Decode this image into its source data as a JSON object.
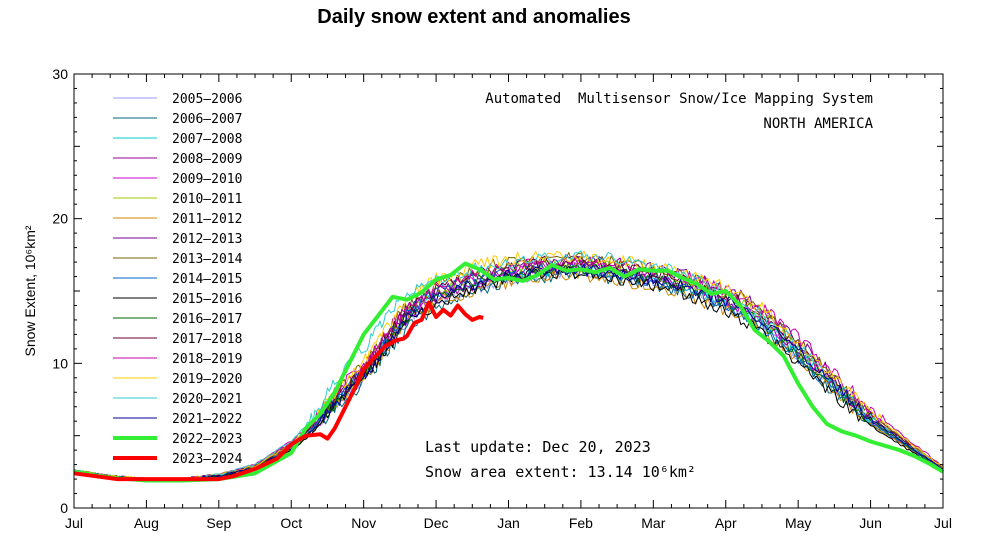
{
  "chart_data": {
    "type": "line",
    "title": "Daily snow extent and anomalies",
    "ylabel": "Snow Extent, 10⁶km²",
    "xlabel": "",
    "ylim": [
      0,
      30
    ],
    "yticks": [
      0,
      10,
      20,
      30
    ],
    "xlim": [
      0,
      12
    ],
    "xticks": [
      "Jul",
      "Aug",
      "Sep",
      "Oct",
      "Nov",
      "Dec",
      "Jan",
      "Feb",
      "Mar",
      "Apr",
      "May",
      "Jun",
      "Jul"
    ],
    "legend_position": "top-left",
    "annotations": {
      "system": "Automated  Multisensor Snow/Ice Mapping System",
      "region": "NORTH AMERICA",
      "last_update": "Last update: Dec 20, 2023",
      "area_extent": "Snow area extent: 13.14 10⁶km²"
    },
    "series": [
      {
        "name": "2005–2006",
        "color": "#9999ff",
        "thick": false,
        "x": [
          0,
          0.5,
          1,
          1.5,
          2,
          2.5,
          3,
          3.3,
          3.6,
          4,
          4.3,
          4.6,
          5,
          5.5,
          6,
          6.5,
          7,
          7.5,
          8,
          8.5,
          9,
          9.5,
          10,
          10.5,
          11,
          11.5,
          12
        ],
        "y": [
          2.6,
          2.2,
          2.0,
          2.0,
          2.2,
          2.8,
          4.2,
          5.5,
          7.2,
          9.0,
          11.0,
          13.0,
          14.3,
          15.0,
          15.8,
          16.2,
          16.3,
          16.0,
          15.7,
          15.1,
          14.2,
          12.7,
          10.6,
          8.2,
          6.0,
          4.3,
          2.7
        ]
      },
      {
        "name": "2006–2007",
        "color": "#006677",
        "thick": false,
        "x": [
          0,
          0.5,
          1,
          1.5,
          2,
          2.5,
          3,
          3.3,
          3.6,
          4,
          4.3,
          4.6,
          5,
          5.5,
          6,
          6.5,
          7,
          7.5,
          8,
          8.5,
          9,
          9.5,
          10,
          10.5,
          11,
          11.5,
          12
        ],
        "y": [
          2.5,
          2.2,
          2.0,
          2.0,
          2.2,
          2.7,
          4.0,
          5.2,
          7.0,
          8.6,
          10.6,
          12.4,
          13.8,
          14.9,
          15.7,
          16.0,
          16.2,
          15.8,
          15.5,
          14.9,
          14.0,
          12.5,
          10.4,
          8.0,
          5.8,
          4.2,
          2.6
        ]
      },
      {
        "name": "2007–2008",
        "color": "#00cccc",
        "thick": false,
        "x": [
          0,
          0.5,
          1,
          1.5,
          2,
          2.5,
          3,
          3.3,
          3.6,
          4,
          4.3,
          4.6,
          5,
          5.5,
          6,
          6.5,
          7,
          7.5,
          8,
          8.5,
          9,
          9.5,
          10,
          10.5,
          11,
          11.5,
          12
        ],
        "y": [
          2.6,
          2.2,
          2.0,
          2.0,
          2.3,
          2.9,
          4.3,
          5.6,
          7.4,
          9.4,
          11.6,
          13.6,
          14.7,
          15.3,
          16.0,
          16.4,
          16.6,
          16.3,
          15.9,
          15.2,
          14.3,
          12.9,
          10.7,
          8.3,
          6.1,
          4.4,
          2.7
        ]
      },
      {
        "name": "2008–2009",
        "color": "#990099",
        "thick": false,
        "x": [
          0,
          0.5,
          1,
          1.5,
          2,
          2.5,
          3,
          3.3,
          3.6,
          4,
          4.3,
          4.6,
          5,
          5.5,
          6,
          6.5,
          7,
          7.5,
          8,
          8.5,
          9,
          9.5,
          10,
          10.5,
          11,
          11.5,
          12
        ],
        "y": [
          2.4,
          2.1,
          1.9,
          1.9,
          2.2,
          2.8,
          4.1,
          5.4,
          7.3,
          9.2,
          11.3,
          13.3,
          14.5,
          15.4,
          16.1,
          16.5,
          16.7,
          16.3,
          16.0,
          15.3,
          14.5,
          13.1,
          10.9,
          8.5,
          6.2,
          4.4,
          2.7
        ]
      },
      {
        "name": "2009–2010",
        "color": "#cc00cc",
        "thick": false,
        "x": [
          0,
          0.5,
          1,
          1.5,
          2,
          2.5,
          3,
          3.3,
          3.6,
          4,
          4.3,
          4.6,
          5,
          5.5,
          6,
          6.5,
          7,
          7.5,
          8,
          8.5,
          9,
          9.5,
          10,
          10.5,
          11,
          11.5,
          12
        ],
        "y": [
          2.5,
          2.2,
          2.0,
          2.0,
          2.3,
          3.0,
          4.5,
          5.8,
          7.8,
          9.6,
          11.5,
          13.2,
          14.6,
          15.6,
          16.2,
          16.6,
          16.8,
          16.4,
          16.0,
          15.4,
          14.4,
          13.0,
          10.8,
          8.4,
          6.0,
          4.3,
          2.6
        ]
      },
      {
        "name": "2010–2011",
        "color": "#99cc00",
        "thick": false,
        "x": [
          0,
          0.5,
          1,
          1.5,
          2,
          2.5,
          3,
          3.3,
          3.6,
          4,
          4.3,
          4.6,
          5,
          5.5,
          6,
          6.5,
          7,
          7.5,
          8,
          8.5,
          9,
          9.5,
          10,
          10.5,
          11,
          11.5,
          12
        ],
        "y": [
          2.6,
          2.2,
          2.0,
          2.0,
          2.2,
          2.8,
          4.2,
          5.5,
          7.3,
          9.3,
          11.4,
          13.5,
          15.0,
          16.0,
          16.6,
          16.9,
          17.0,
          16.7,
          16.2,
          15.6,
          14.8,
          13.3,
          11.1,
          8.6,
          6.3,
          4.5,
          2.8
        ]
      },
      {
        "name": "2011–2012",
        "color": "#cc8800",
        "thick": false,
        "x": [
          0,
          0.5,
          1,
          1.5,
          2,
          2.5,
          3,
          3.3,
          3.6,
          4,
          4.3,
          4.6,
          5,
          5.5,
          6,
          6.5,
          7,
          7.5,
          8,
          8.5,
          9,
          9.5,
          10,
          10.5,
          11,
          11.5,
          12
        ],
        "y": [
          2.5,
          2.1,
          1.9,
          1.9,
          2.2,
          2.7,
          4.0,
          5.2,
          7.0,
          9.0,
          11.0,
          12.9,
          14.2,
          15.0,
          15.6,
          16.0,
          16.1,
          15.8,
          15.3,
          14.6,
          13.7,
          12.2,
          10.2,
          7.9,
          5.8,
          4.2,
          2.6
        ]
      },
      {
        "name": "2012–2013",
        "color": "#770099",
        "thick": false,
        "x": [
          0,
          0.5,
          1,
          1.5,
          2,
          2.5,
          3,
          3.3,
          3.6,
          4,
          4.3,
          4.6,
          5,
          5.5,
          6,
          6.5,
          7,
          7.5,
          8,
          8.5,
          9,
          9.5,
          10,
          10.5,
          11,
          11.5,
          12
        ],
        "y": [
          2.5,
          2.2,
          2.0,
          2.0,
          2.3,
          2.9,
          4.3,
          5.6,
          7.5,
          9.5,
          11.6,
          13.6,
          15.0,
          16.0,
          16.6,
          17.0,
          17.2,
          16.9,
          16.5,
          16.0,
          15.2,
          13.8,
          11.6,
          9.0,
          6.5,
          4.6,
          2.8
        ]
      },
      {
        "name": "2013–2014",
        "color": "#776600",
        "thick": false,
        "x": [
          0,
          0.5,
          1,
          1.5,
          2,
          2.5,
          3,
          3.3,
          3.6,
          4,
          4.3,
          4.6,
          5,
          5.5,
          6,
          6.5,
          7,
          7.5,
          8,
          8.5,
          9,
          9.5,
          10,
          10.5,
          11,
          11.5,
          12
        ],
        "y": [
          2.6,
          2.2,
          2.0,
          2.0,
          2.3,
          2.9,
          4.4,
          5.8,
          7.8,
          9.9,
          12.0,
          14.0,
          15.4,
          16.4,
          17.0,
          17.3,
          17.3,
          17.0,
          16.6,
          16.0,
          15.1,
          13.7,
          11.5,
          8.9,
          6.4,
          4.6,
          2.8
        ]
      },
      {
        "name": "2014–2015",
        "color": "#0066cc",
        "thick": false,
        "x": [
          0,
          0.5,
          1,
          1.5,
          2,
          2.5,
          3,
          3.3,
          3.6,
          4,
          4.3,
          4.6,
          5,
          5.5,
          6,
          6.5,
          7,
          7.5,
          8,
          8.5,
          9,
          9.5,
          10,
          10.5,
          11,
          11.5,
          12
        ],
        "y": [
          2.5,
          2.2,
          2.0,
          2.0,
          2.2,
          2.8,
          4.2,
          5.5,
          7.4,
          9.4,
          11.5,
          13.5,
          14.9,
          15.8,
          16.3,
          16.5,
          16.6,
          16.2,
          15.7,
          15.0,
          14.0,
          12.5,
          10.4,
          8.1,
          5.9,
          4.3,
          2.6
        ]
      },
      {
        "name": "2015–2016",
        "color": "#000000",
        "thick": false,
        "x": [
          0,
          0.5,
          1,
          1.5,
          2,
          2.5,
          3,
          3.3,
          3.6,
          4,
          4.3,
          4.6,
          5,
          5.5,
          6,
          6.5,
          7,
          7.5,
          8,
          8.5,
          9,
          9.5,
          10,
          10.5,
          11,
          11.5,
          12
        ],
        "y": [
          2.5,
          2.2,
          2.0,
          2.0,
          2.2,
          2.7,
          4.0,
          5.2,
          7.0,
          9.0,
          10.9,
          12.8,
          14.1,
          15.2,
          15.9,
          16.2,
          16.3,
          15.9,
          15.4,
          14.7,
          13.6,
          12.1,
          10.1,
          7.8,
          5.7,
          4.1,
          2.5
        ]
      },
      {
        "name": "2016–2017",
        "color": "#006600",
        "thick": false,
        "x": [
          0,
          0.5,
          1,
          1.5,
          2,
          2.5,
          3,
          3.3,
          3.6,
          4,
          4.3,
          4.6,
          5,
          5.5,
          6,
          6.5,
          7,
          7.5,
          8,
          8.5,
          9,
          9.5,
          10,
          10.5,
          11,
          11.5,
          12
        ],
        "y": [
          2.5,
          2.2,
          2.0,
          2.0,
          2.2,
          2.8,
          4.1,
          5.4,
          7.2,
          9.2,
          11.2,
          13.2,
          14.6,
          15.6,
          16.2,
          16.5,
          16.6,
          16.3,
          15.9,
          15.3,
          14.3,
          12.8,
          10.7,
          8.3,
          6.0,
          4.3,
          2.6
        ]
      },
      {
        "name": "2017–2018",
        "color": "#660033",
        "thick": false,
        "x": [
          0,
          0.5,
          1,
          1.5,
          2,
          2.5,
          3,
          3.3,
          3.6,
          4,
          4.3,
          4.6,
          5,
          5.5,
          6,
          6.5,
          7,
          7.5,
          8,
          8.5,
          9,
          9.5,
          10,
          10.5,
          11,
          11.5,
          12
        ],
        "y": [
          2.6,
          2.2,
          2.0,
          2.0,
          2.3,
          2.9,
          4.3,
          5.7,
          7.6,
          9.6,
          11.7,
          13.7,
          15.1,
          16.1,
          16.7,
          17.0,
          17.0,
          16.7,
          16.3,
          15.7,
          14.8,
          13.4,
          11.2,
          8.7,
          6.3,
          4.5,
          2.7
        ]
      },
      {
        "name": "2018–2019",
        "color": "#cc00aa",
        "thick": false,
        "x": [
          0,
          0.5,
          1,
          1.5,
          2,
          2.5,
          3,
          3.3,
          3.6,
          4,
          4.3,
          4.6,
          5,
          5.5,
          6,
          6.5,
          7,
          7.5,
          8,
          8.5,
          9,
          9.5,
          10,
          10.5,
          11,
          11.5,
          12
        ],
        "y": [
          2.5,
          2.2,
          2.0,
          2.0,
          2.3,
          3.0,
          4.6,
          6.0,
          8.0,
          10.0,
          12.0,
          13.9,
          15.2,
          16.1,
          16.6,
          16.9,
          17.0,
          16.7,
          16.4,
          15.9,
          15.1,
          13.8,
          11.8,
          9.3,
          6.8,
          4.8,
          2.9
        ]
      },
      {
        "name": "2019–2020",
        "color": "#ffcc00",
        "thick": false,
        "x": [
          0,
          0.5,
          1,
          1.5,
          2,
          2.5,
          3,
          3.3,
          3.6,
          4,
          4.3,
          4.6,
          5,
          5.5,
          6,
          6.5,
          7,
          7.5,
          8,
          8.5,
          9,
          9.5,
          10,
          10.5,
          11,
          11.5,
          12
        ],
        "y": [
          2.6,
          2.2,
          2.0,
          2.0,
          2.3,
          2.9,
          4.4,
          5.9,
          8.0,
          10.2,
          12.4,
          14.4,
          15.8,
          16.7,
          17.2,
          17.4,
          17.4,
          17.1,
          16.7,
          16.1,
          15.2,
          13.8,
          11.6,
          9.0,
          6.6,
          4.7,
          2.8
        ]
      },
      {
        "name": "2020–2021",
        "color": "#33cccc",
        "thick": false,
        "x": [
          0,
          0.5,
          1,
          1.5,
          2,
          2.5,
          3,
          3.3,
          3.6,
          4,
          4.3,
          4.6,
          5,
          5.5,
          6,
          6.5,
          7,
          7.5,
          8,
          8.5,
          9,
          9.5,
          10,
          10.5,
          11,
          11.5,
          12
        ],
        "y": [
          2.6,
          2.2,
          2.0,
          2.0,
          2.3,
          3.0,
          4.6,
          6.3,
          8.8,
          11.0,
          13.0,
          14.8,
          15.9,
          16.5,
          16.9,
          17.2,
          17.5,
          17.3,
          16.8,
          16.0,
          14.9,
          13.3,
          11.1,
          8.6,
          6.2,
          4.4,
          2.7
        ]
      },
      {
        "name": "2021–2022",
        "color": "#000099",
        "thick": false,
        "x": [
          0,
          0.5,
          1,
          1.5,
          2,
          2.5,
          3,
          3.3,
          3.6,
          4,
          4.3,
          4.6,
          5,
          5.5,
          6,
          6.5,
          7,
          7.5,
          8,
          8.5,
          9,
          9.5,
          10,
          10.5,
          11,
          11.5,
          12
        ],
        "y": [
          2.5,
          2.2,
          2.0,
          2.0,
          2.2,
          2.8,
          4.1,
          5.4,
          7.2,
          9.1,
          11.1,
          13.1,
          14.5,
          15.5,
          16.1,
          16.4,
          16.5,
          16.2,
          15.8,
          15.2,
          14.3,
          12.9,
          10.9,
          8.5,
          6.2,
          4.4,
          2.7
        ]
      },
      {
        "name": "2022–2023",
        "color": "#33ee33",
        "thick": true,
        "x": [
          0,
          0.5,
          1,
          1.5,
          2,
          2.5,
          3,
          3.2,
          3.4,
          3.6,
          3.8,
          4,
          4.2,
          4.4,
          4.6,
          4.8,
          5,
          5.2,
          5.4,
          5.6,
          5.8,
          6,
          6.2,
          6.4,
          6.6,
          6.8,
          7,
          7.2,
          7.4,
          7.6,
          7.8,
          8,
          8.2,
          8.4,
          8.6,
          8.8,
          9,
          9.2,
          9.4,
          9.6,
          9.8,
          10,
          10.2,
          10.4,
          10.6,
          10.8,
          11,
          11.2,
          11.4,
          11.6,
          11.8,
          12
        ],
        "y": [
          2.5,
          2.1,
          1.9,
          1.9,
          2.0,
          2.4,
          3.8,
          5.5,
          6.5,
          8.0,
          10.0,
          12.0,
          13.3,
          14.6,
          14.4,
          14.9,
          15.8,
          16.1,
          16.9,
          16.5,
          15.8,
          15.9,
          15.7,
          16.1,
          16.8,
          16.4,
          16.5,
          16.3,
          16.6,
          16.0,
          16.5,
          16.4,
          16.4,
          15.9,
          15.5,
          14.8,
          15.0,
          14.0,
          12.3,
          11.5,
          10.5,
          8.6,
          7.0,
          5.8,
          5.3,
          5.0,
          4.6,
          4.3,
          4.0,
          3.6,
          3.1,
          2.5
        ]
      },
      {
        "name": "2023–2024",
        "color": "#ff0000",
        "thick": true,
        "x": [
          0,
          0.3,
          0.6,
          1,
          1.3,
          1.6,
          2,
          2.2,
          2.5,
          2.8,
          3.0,
          3.2,
          3.4,
          3.5,
          3.6,
          3.75,
          3.9,
          4.0,
          4.15,
          4.3,
          4.45,
          4.55,
          4.6,
          4.7,
          4.8,
          4.9,
          5.0,
          5.1,
          5.2,
          5.3,
          5.4,
          5.5,
          5.6,
          5.65
        ],
        "y": [
          2.4,
          2.2,
          2.0,
          2.0,
          2.0,
          2.0,
          2.0,
          2.2,
          2.7,
          3.4,
          4.4,
          5.0,
          5.1,
          4.8,
          5.5,
          7.0,
          8.5,
          9.6,
          10.4,
          11.2,
          11.6,
          11.7,
          11.9,
          12.8,
          13.0,
          14.2,
          13.2,
          13.7,
          13.3,
          14.0,
          13.4,
          13.0,
          13.2,
          13.14
        ]
      }
    ]
  }
}
